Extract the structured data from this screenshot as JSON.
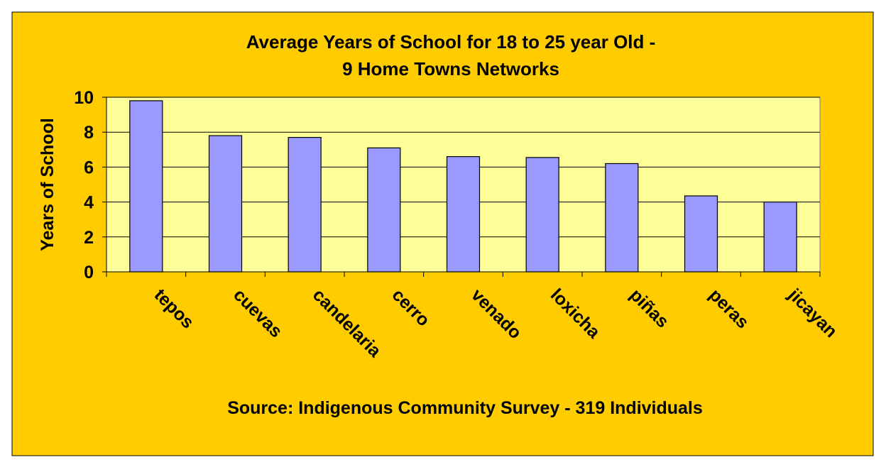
{
  "chart_data": {
    "type": "bar",
    "title": [
      "Average Years of School for 18 to 25 year Old -",
      "9 Home Towns Networks"
    ],
    "ylabel": "Years of School",
    "source": "Source: Indigenous Community Survey  - 319 Individuals",
    "categories": [
      "tepos",
      "cuevas",
      "candelaria",
      "cerro",
      "venado",
      "loxicha",
      "piñas",
      "peras",
      "jicayan"
    ],
    "values": [
      9.8,
      7.8,
      7.7,
      7.1,
      6.6,
      6.55,
      6.2,
      4.35,
      4.0
    ],
    "color": "#9999FF",
    "ylim": [
      0,
      10
    ],
    "yticks": [
      0,
      2,
      4,
      6,
      8,
      10
    ],
    "grid": true
  }
}
